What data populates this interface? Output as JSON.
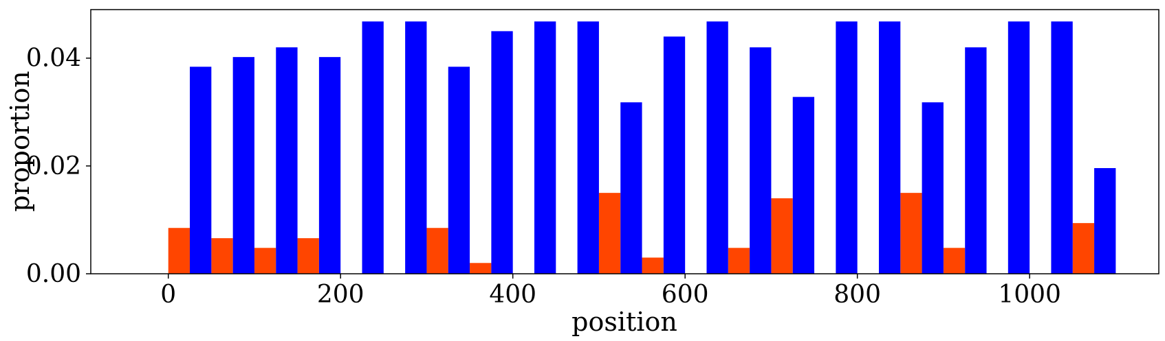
{
  "chart_data": {
    "type": "bar",
    "xlabel": "position",
    "ylabel": "proportion",
    "xlim": [
      -90,
      1150
    ],
    "ylim": [
      0,
      0.049
    ],
    "xticks": [
      0,
      200,
      400,
      600,
      800,
      1000
    ],
    "yticks": [
      0.0,
      0.02,
      0.04
    ],
    "xtick_labels": [
      "0",
      "200",
      "400",
      "600",
      "800",
      "1000"
    ],
    "ytick_labels": [
      "0.00",
      "0.02",
      "0.04"
    ],
    "bar_width": 25,
    "grid": false,
    "series": [
      {
        "color": "#FF4500",
        "x": [
          0,
          50,
          100,
          150,
          200,
          250,
          300,
          350,
          400,
          450,
          500,
          550,
          600,
          650,
          700,
          750,
          800,
          850,
          900,
          950,
          1000,
          1050
        ],
        "values": [
          0.0085,
          0.0066,
          0.0048,
          0.0066,
          0,
          0,
          0.0085,
          0.002,
          0,
          0,
          0.015,
          0.003,
          0,
          0.0048,
          0.014,
          0,
          0,
          0.015,
          0.0048,
          0,
          0,
          0.0094
        ]
      },
      {
        "color": "#0000FF",
        "x": [
          25,
          75,
          125,
          175,
          225,
          275,
          325,
          375,
          425,
          475,
          525,
          575,
          625,
          675,
          725,
          775,
          825,
          875,
          925,
          975,
          1025,
          1075
        ],
        "values": [
          0.0384,
          0.0402,
          0.042,
          0.0402,
          0.0468,
          0.0468,
          0.0384,
          0.045,
          0.0468,
          0.0468,
          0.0318,
          0.044,
          0.0468,
          0.042,
          0.0328,
          0.0468,
          0.0468,
          0.0318,
          0.042,
          0.0468,
          0.0468,
          0.0196
        ]
      }
    ]
  }
}
